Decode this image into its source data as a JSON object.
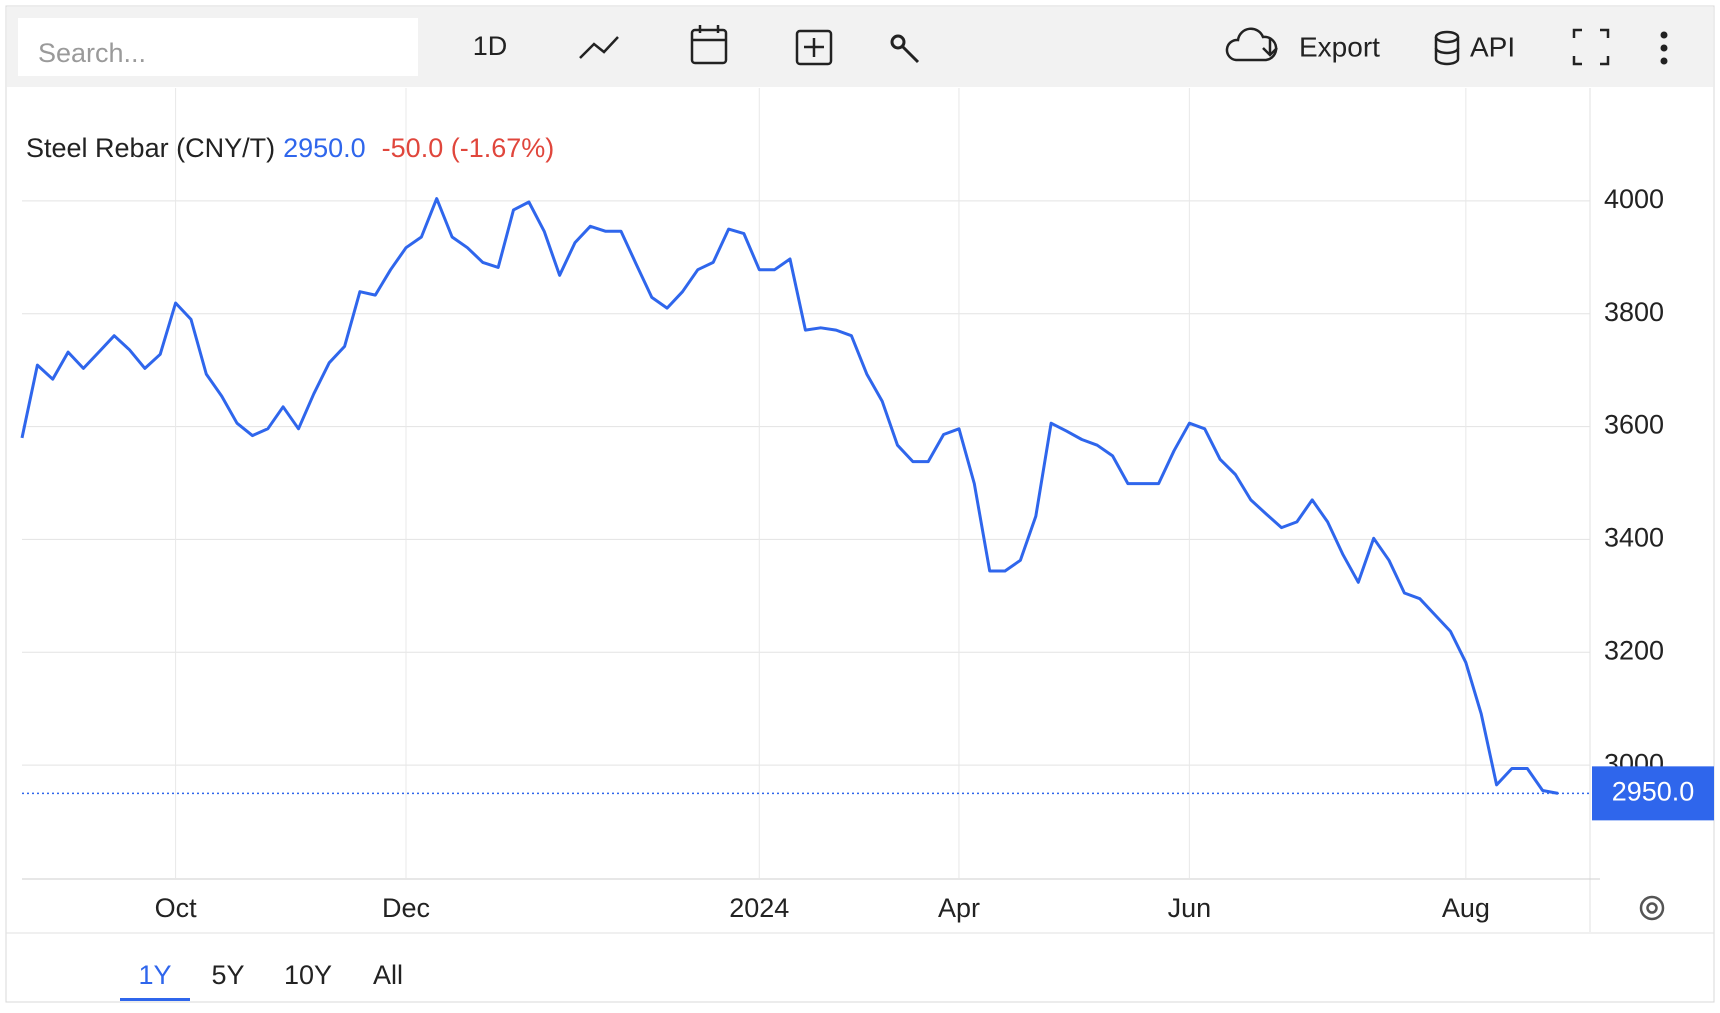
{
  "toolbar": {
    "search_placeholder": "Search...",
    "interval": "1D",
    "export": "Export",
    "api": "API"
  },
  "ranges": [
    "1Y",
    "5Y",
    "10Y",
    "All"
  ],
  "chart_data": {
    "type": "line",
    "title": "Steel Rebar (CNY/T)",
    "last_label": "2950.0",
    "change_label": "-50.0 (-1.67%)",
    "categories": [
      null,
      null,
      null,
      null,
      null,
      null,
      null,
      null,
      null,
      null,
      "Oct",
      null,
      null,
      null,
      null,
      null,
      null,
      null,
      null,
      null,
      null,
      null,
      null,
      null,
      null,
      "Dec",
      null,
      null,
      null,
      null,
      null,
      null,
      null,
      null,
      null,
      null,
      null,
      null,
      null,
      null,
      null,
      null,
      null,
      null,
      null,
      null,
      null,
      null,
      "2024",
      null,
      null,
      null,
      null,
      null,
      null,
      null,
      null,
      null,
      null,
      null,
      null,
      "Apr",
      null,
      null,
      null,
      null,
      null,
      null,
      null,
      null,
      null,
      null,
      null,
      null,
      null,
      null,
      "Jun",
      null,
      null,
      null,
      null,
      null,
      null,
      null,
      null,
      null,
      null,
      null,
      null,
      null,
      null,
      null,
      null,
      null,
      "Aug",
      null,
      null,
      null,
      null,
      null,
      null
    ],
    "series": [
      {
        "name": "Steel Rebar",
        "color": "#2f66ec",
        "values": [
          3580,
          3709,
          3684,
          3732,
          3703,
          3732,
          3761,
          3736,
          3703,
          3728,
          3819,
          3790,
          3693,
          3654,
          3606,
          3584,
          3596,
          3635,
          3596,
          3658,
          3713,
          3742,
          3839,
          3833,
          3878,
          3917,
          3936,
          4004,
          3936,
          3917,
          3891,
          3882,
          3984,
          3998,
          3946,
          3868,
          3926,
          3955,
          3946,
          3946,
          3887,
          3829,
          3810,
          3839,
          3878,
          3891,
          3950,
          3942,
          3878,
          3878,
          3897,
          3771,
          3775,
          3771,
          3761,
          3693,
          3645,
          3567,
          3538,
          3538,
          3586,
          3596,
          3499,
          3344,
          3344,
          3363,
          3441,
          3606,
          3592,
          3577,
          3567,
          3548,
          3499,
          3499,
          3499,
          3557,
          3606,
          3596,
          3542,
          3515,
          3470,
          3445,
          3421,
          3431,
          3470,
          3431,
          3373,
          3324,
          3402,
          3363,
          3305,
          3295,
          3266,
          3237,
          3182,
          3091,
          2965,
          2994,
          2994,
          2955,
          2950
        ]
      }
    ],
    "ylim": [
      2800,
      4200
    ],
    "yticks": [
      3000,
      3200,
      3400,
      3600,
      3800,
      4000
    ],
    "grid": true
  }
}
